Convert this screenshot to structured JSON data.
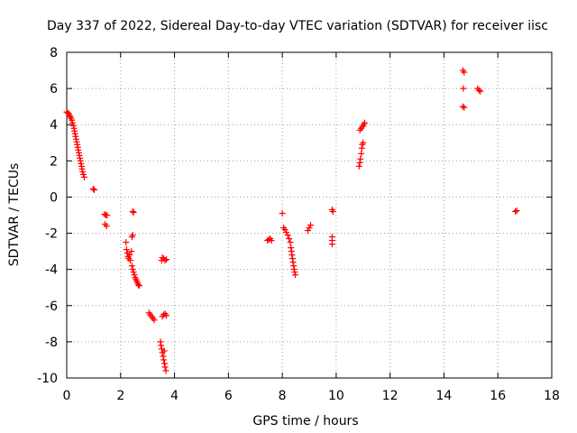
{
  "chart_data": {
    "type": "scatter",
    "title": "Day 337 of 2022, Sidereal Day-to-day VTEC variation (SDTVAR) for receiver iisc",
    "xlabel": "GPS time / hours",
    "ylabel": "SDTVAR / TECUs",
    "xlim": [
      0,
      18
    ],
    "ylim": [
      -10,
      8
    ],
    "xticks": [
      0,
      2,
      4,
      6,
      8,
      10,
      12,
      14,
      16,
      18
    ],
    "yticks": [
      -10,
      -8,
      -6,
      -4,
      -2,
      0,
      2,
      4,
      6,
      8
    ],
    "grid": true,
    "marker": "+",
    "marker_color": "#ff0000",
    "series": [
      {
        "name": "SDTVAR",
        "points": [
          [
            0.0,
            4.7
          ],
          [
            0.04,
            4.65
          ],
          [
            0.08,
            4.6
          ],
          [
            0.1,
            4.5
          ],
          [
            0.13,
            4.45
          ],
          [
            0.16,
            4.35
          ],
          [
            0.19,
            4.25
          ],
          [
            0.22,
            4.1
          ],
          [
            0.25,
            3.95
          ],
          [
            0.27,
            3.8
          ],
          [
            0.29,
            3.65
          ],
          [
            0.31,
            3.5
          ],
          [
            0.33,
            3.35
          ],
          [
            0.35,
            3.2
          ],
          [
            0.37,
            3.05
          ],
          [
            0.39,
            2.9
          ],
          [
            0.41,
            2.75
          ],
          [
            0.43,
            2.6
          ],
          [
            0.45,
            2.45
          ],
          [
            0.47,
            2.3
          ],
          [
            0.49,
            2.15
          ],
          [
            0.51,
            2.0
          ],
          [
            0.53,
            1.85
          ],
          [
            0.55,
            1.7
          ],
          [
            0.57,
            1.55
          ],
          [
            0.59,
            1.4
          ],
          [
            0.62,
            1.25
          ],
          [
            0.65,
            1.1
          ],
          [
            0.98,
            0.45
          ],
          [
            1.02,
            0.4
          ],
          [
            1.4,
            -0.95
          ],
          [
            1.45,
            -1.0
          ],
          [
            1.5,
            -1.0
          ],
          [
            1.42,
            -1.5
          ],
          [
            1.48,
            -1.6
          ],
          [
            2.2,
            -2.5
          ],
          [
            2.22,
            -2.9
          ],
          [
            2.25,
            -3.1
          ],
          [
            2.28,
            -3.3
          ],
          [
            2.3,
            -3.4
          ],
          [
            2.33,
            -3.2
          ],
          [
            2.36,
            -3.5
          ],
          [
            2.4,
            -3.0
          ],
          [
            2.42,
            -2.2
          ],
          [
            2.45,
            -2.1
          ],
          [
            2.45,
            -0.8
          ],
          [
            2.48,
            -0.85
          ],
          [
            2.42,
            -3.8
          ],
          [
            2.45,
            -4.0
          ],
          [
            2.48,
            -4.15
          ],
          [
            2.51,
            -4.3
          ],
          [
            2.54,
            -4.45
          ],
          [
            2.57,
            -4.55
          ],
          [
            2.6,
            -4.65
          ],
          [
            2.63,
            -4.75
          ],
          [
            2.66,
            -4.85
          ],
          [
            2.69,
            -4.9
          ],
          [
            3.05,
            -6.4
          ],
          [
            3.1,
            -6.5
          ],
          [
            3.15,
            -6.6
          ],
          [
            3.2,
            -6.7
          ],
          [
            3.25,
            -6.8
          ],
          [
            3.52,
            -3.5
          ],
          [
            3.55,
            -3.35
          ],
          [
            3.6,
            -3.4
          ],
          [
            3.65,
            -3.5
          ],
          [
            3.7,
            -3.45
          ],
          [
            3.55,
            -6.6
          ],
          [
            3.6,
            -6.5
          ],
          [
            3.65,
            -6.45
          ],
          [
            3.7,
            -6.55
          ],
          [
            3.48,
            -8.0
          ],
          [
            3.5,
            -8.2
          ],
          [
            3.53,
            -8.4
          ],
          [
            3.55,
            -8.6
          ],
          [
            3.58,
            -8.8
          ],
          [
            3.6,
            -9.0
          ],
          [
            3.63,
            -9.2
          ],
          [
            3.65,
            -9.4
          ],
          [
            3.68,
            -9.6
          ],
          [
            3.62,
            -8.5
          ],
          [
            7.45,
            -2.4
          ],
          [
            7.5,
            -2.35
          ],
          [
            7.55,
            -2.3
          ],
          [
            7.6,
            -2.4
          ],
          [
            8.0,
            -0.9
          ],
          [
            8.05,
            -1.7
          ],
          [
            8.1,
            -1.8
          ],
          [
            8.15,
            -1.95
          ],
          [
            8.2,
            -2.1
          ],
          [
            8.25,
            -2.3
          ],
          [
            8.3,
            -2.5
          ],
          [
            8.32,
            -2.8
          ],
          [
            8.34,
            -3.0
          ],
          [
            8.36,
            -3.2
          ],
          [
            8.38,
            -3.4
          ],
          [
            8.4,
            -3.6
          ],
          [
            8.42,
            -3.8
          ],
          [
            8.44,
            -4.0
          ],
          [
            8.46,
            -4.15
          ],
          [
            8.48,
            -4.3
          ],
          [
            8.95,
            -1.85
          ],
          [
            9.0,
            -1.7
          ],
          [
            9.05,
            -1.55
          ],
          [
            9.85,
            -0.7
          ],
          [
            9.88,
            -0.8
          ],
          [
            9.85,
            -2.2
          ],
          [
            9.85,
            -2.4
          ],
          [
            9.85,
            -2.6
          ],
          [
            10.85,
            1.7
          ],
          [
            10.88,
            1.9
          ],
          [
            10.9,
            2.1
          ],
          [
            10.93,
            2.4
          ],
          [
            10.95,
            2.7
          ],
          [
            10.97,
            2.9
          ],
          [
            11.0,
            3.0
          ],
          [
            10.88,
            3.7
          ],
          [
            10.93,
            3.8
          ],
          [
            10.98,
            3.9
          ],
          [
            11.02,
            4.0
          ],
          [
            11.06,
            4.1
          ],
          [
            14.7,
            7.0
          ],
          [
            14.75,
            6.9
          ],
          [
            14.72,
            6.0
          ],
          [
            14.7,
            5.0
          ],
          [
            14.75,
            4.95
          ],
          [
            15.25,
            6.0
          ],
          [
            15.3,
            5.9
          ],
          [
            15.35,
            5.85
          ],
          [
            16.65,
            -0.8
          ],
          [
            16.7,
            -0.75
          ]
        ]
      }
    ]
  }
}
